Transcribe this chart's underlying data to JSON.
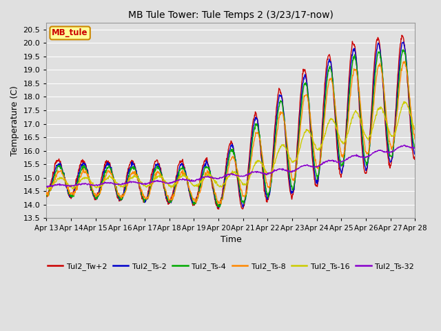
{
  "title": "MB Tule Tower: Tule Temps 2 (3/23/17-now)",
  "xlabel": "Time",
  "ylabel": "Temperature (C)",
  "ylim": [
    13.5,
    20.75
  ],
  "yticks": [
    13.5,
    14.0,
    14.5,
    15.0,
    15.5,
    16.0,
    16.5,
    17.0,
    17.5,
    18.0,
    18.5,
    19.0,
    19.5,
    20.0,
    20.5
  ],
  "xlim": [
    0,
    15
  ],
  "xtick_labels": [
    "Apr 13",
    "Apr 14",
    "Apr 15",
    "Apr 16",
    "Apr 17",
    "Apr 18",
    "Apr 19",
    "Apr 20",
    "Apr 21",
    "Apr 22",
    "Apr 23",
    "Apr 24",
    "Apr 25",
    "Apr 26",
    "Apr 27",
    "Apr 28"
  ],
  "background_color": "#e0e0e0",
  "plot_bg_color": "#e0e0e0",
  "grid_color": "#ffffff",
  "legend_label": "MB_tule",
  "figsize": [
    6.4,
    4.8
  ],
  "dpi": 100,
  "series": [
    {
      "label": "Tul2_Tw+2",
      "color": "#cc0000"
    },
    {
      "label": "Tul2_Ts-2",
      "color": "#0000cc"
    },
    {
      "label": "Tul2_Ts-4",
      "color": "#00aa00"
    },
    {
      "label": "Tul2_Ts-8",
      "color": "#ff8800"
    },
    {
      "label": "Tul2_Ts-16",
      "color": "#cccc00"
    },
    {
      "label": "Tul2_Ts-32",
      "color": "#8800cc"
    }
  ]
}
